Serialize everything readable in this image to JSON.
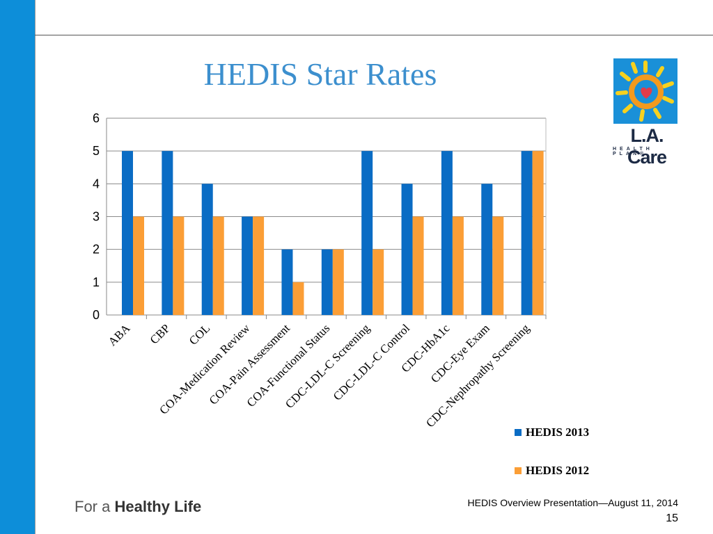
{
  "slide": {
    "title": "HEDIS Star Rates",
    "footer_tagline_prefix": "For a",
    "footer_tagline_bold": "Healthy Life",
    "footer_text": "HEDIS Overview Presentation—August 11, 2014",
    "page_number": "15"
  },
  "logo": {
    "name": "L.A. Care",
    "subtitle": "HEALTH PLAN®"
  },
  "colors": {
    "accent_bar": "#0d8ed9",
    "title": "#3c8fce",
    "series_2013": "#0a6cc4",
    "series_2012": "#fb9e36"
  },
  "chart_data": {
    "type": "bar",
    "title": "",
    "xlabel": "",
    "ylabel": "",
    "ylim": [
      0,
      6
    ],
    "yticks": [
      "0",
      "1",
      "2",
      "3",
      "4",
      "5",
      "6"
    ],
    "grid": true,
    "legend_position": "bottom-right",
    "categories": [
      "ABA",
      "CBP",
      "COL",
      "COA-Medication Review",
      "COA-Pain Assessment",
      "COA-Functional Status",
      "CDC-LDL-C Screening",
      "CDC-LDL-C Control",
      "CDC-HbA1c",
      "CDC-Eye Exam",
      "CDC-Nephropathy Screening"
    ],
    "series": [
      {
        "name": "HEDIS 2013",
        "color": "#0a6cc4",
        "values": [
          5,
          5,
          4,
          3,
          2,
          2,
          5,
          4,
          5,
          4,
          5
        ]
      },
      {
        "name": "HEDIS 2012",
        "color": "#fb9e36",
        "values": [
          3,
          3,
          3,
          3,
          1,
          2,
          2,
          3,
          3,
          3,
          5
        ]
      }
    ]
  }
}
